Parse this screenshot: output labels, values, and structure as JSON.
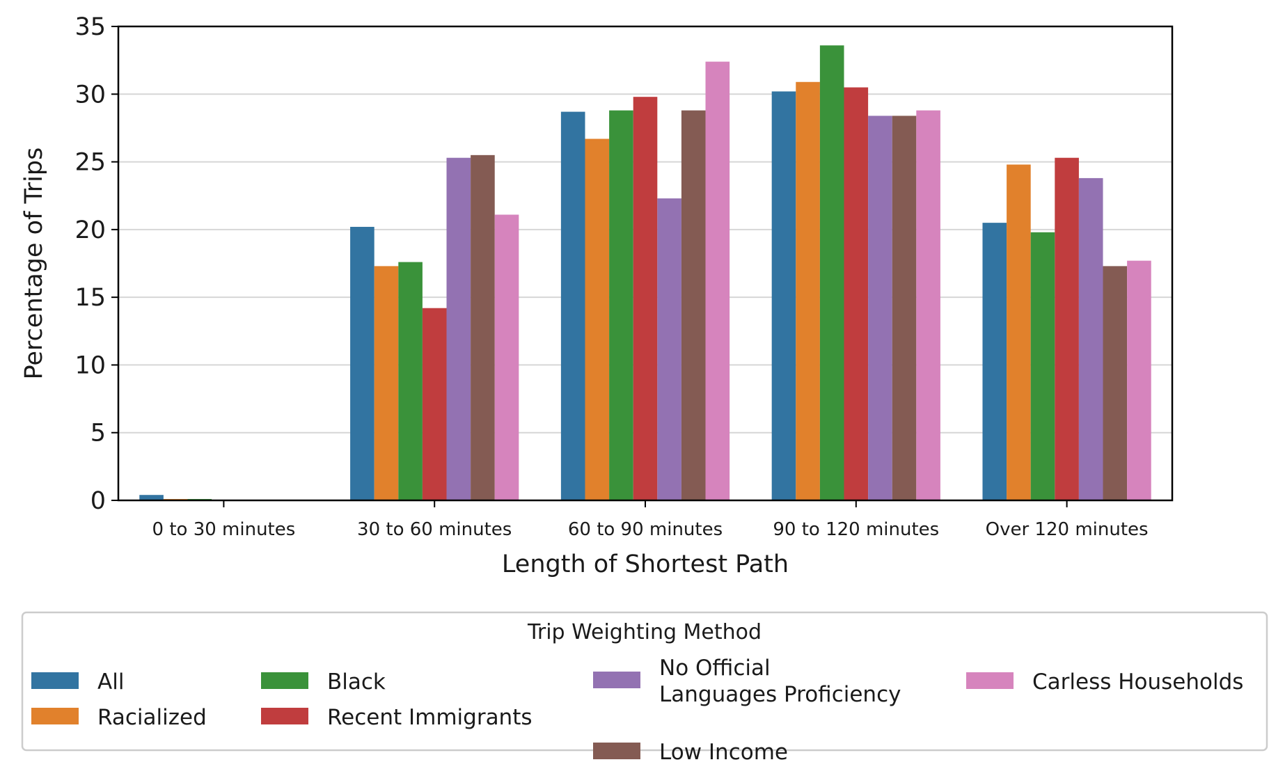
{
  "chart_data": {
    "type": "bar",
    "xlabel": "Length of Shortest Path",
    "ylabel": "Percentage of Trips",
    "ylim": [
      0,
      35
    ],
    "yticks": [
      0,
      5,
      10,
      15,
      20,
      25,
      30,
      35
    ],
    "grid": "horizontal",
    "categories": [
      "0 to 30 minutes",
      "30 to 60 minutes",
      "60 to 90 minutes",
      "90 to 120 minutes",
      "Over 120 minutes"
    ],
    "legend": {
      "title": "Trip Weighting Method",
      "placement": "bottom"
    },
    "series": [
      {
        "name": "All",
        "color": "#3274a1",
        "values": [
          0.4,
          20.2,
          28.7,
          30.2,
          20.5
        ]
      },
      {
        "name": "Racialized",
        "color": "#e1812c",
        "values": [
          0.1,
          17.3,
          26.7,
          30.9,
          24.8
        ]
      },
      {
        "name": "Black",
        "color": "#3a923a",
        "values": [
          0.1,
          17.6,
          28.8,
          33.6,
          19.8
        ]
      },
      {
        "name": "Recent Immigrants",
        "color": "#c03d3e",
        "values": [
          0.0,
          14.2,
          29.8,
          30.5,
          25.3
        ]
      },
      {
        "name": "No Official\nLanguages Proficiency",
        "color": "#9372b2",
        "values": [
          0.0,
          25.3,
          22.3,
          28.4,
          23.8
        ]
      },
      {
        "name": "Low Income",
        "color": "#845b53",
        "values": [
          0.0,
          25.5,
          28.8,
          28.4,
          17.3
        ]
      },
      {
        "name": "Carless Households",
        "color": "#d684bd",
        "values": [
          0.0,
          21.1,
          32.4,
          28.8,
          17.7
        ]
      }
    ]
  }
}
